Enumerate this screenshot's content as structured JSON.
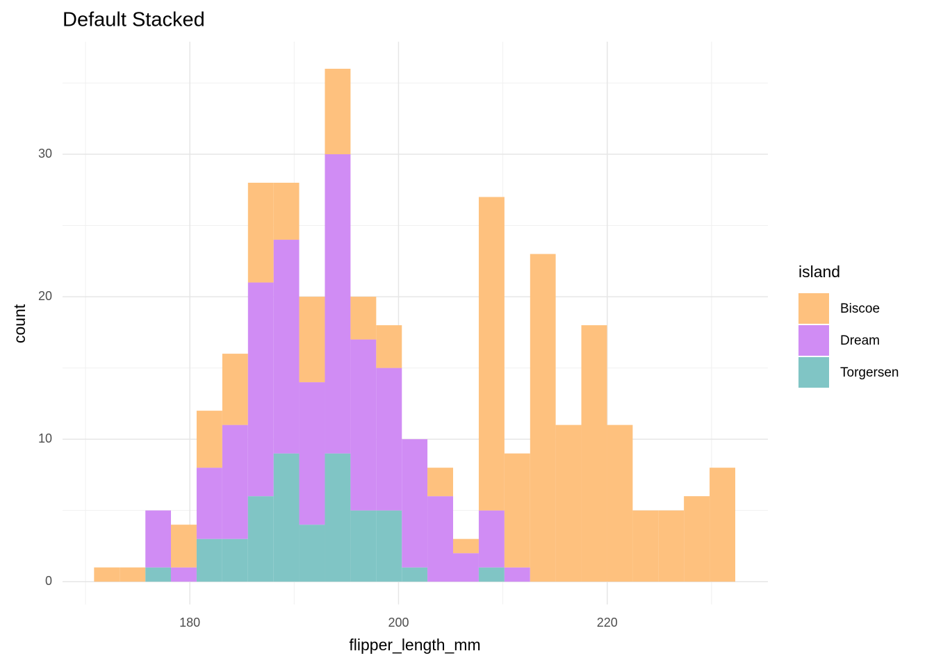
{
  "chart_data": {
    "type": "histogram",
    "title": "Default Stacked",
    "x_label": "flipper_length_mm",
    "y_label": "count",
    "legend_title": "island",
    "legend_position": "right",
    "stacked": true,
    "grid": true,
    "bins": [
      170.82,
      173.28,
      175.74,
      178.19,
      180.65,
      183.11,
      185.57,
      188.03,
      190.48,
      192.94,
      195.4,
      197.86,
      200.32,
      202.77,
      205.23,
      207.69,
      210.15,
      212.61,
      215.06,
      217.52,
      219.98,
      222.44,
      224.9,
      227.35,
      229.81,
      232.27
    ],
    "series": [
      {
        "name": "Biscoe",
        "color": "#fec17e",
        "values": [
          1,
          1,
          0,
          3,
          4,
          5,
          7,
          4,
          6,
          6,
          3,
          3,
          0,
          2,
          1,
          22,
          8,
          23,
          11,
          18,
          11,
          5,
          5,
          6,
          8
        ]
      },
      {
        "name": "Dream",
        "color": "#d08cf4",
        "values": [
          0,
          0,
          4,
          1,
          5,
          8,
          15,
          15,
          10,
          21,
          12,
          10,
          9,
          6,
          2,
          4,
          1,
          0,
          0,
          0,
          0,
          0,
          0,
          0,
          0
        ]
      },
      {
        "name": "Torgersen",
        "color": "#80c5c5",
        "values": [
          0,
          0,
          1,
          0,
          3,
          3,
          6,
          9,
          4,
          9,
          5,
          5,
          1,
          0,
          0,
          1,
          0,
          0,
          0,
          0,
          0,
          0,
          0,
          0,
          0
        ]
      }
    ],
    "xlim": [
      167.8,
      235.4
    ],
    "ylim": [
      -1.6,
      37.9
    ],
    "xticks": [
      180,
      200,
      220
    ],
    "yticks": [
      0,
      10,
      20,
      30
    ]
  }
}
